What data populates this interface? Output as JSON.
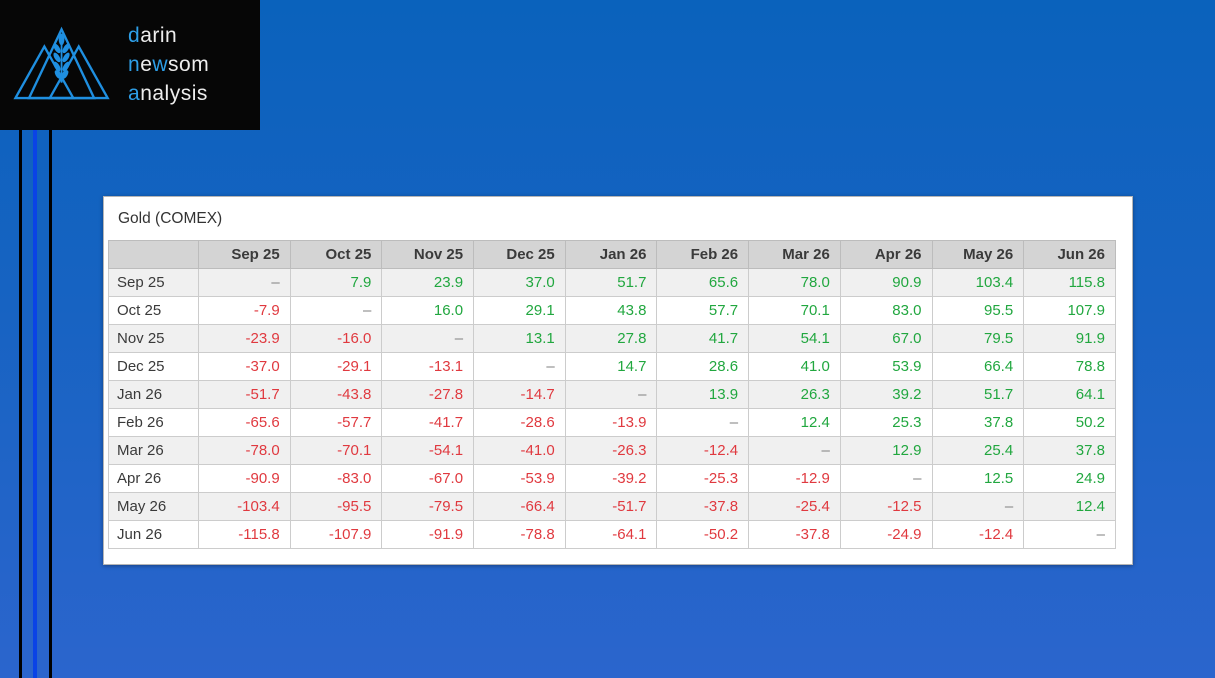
{
  "logo": {
    "l1a": "d",
    "l1b": "arin",
    "l2a": "n",
    "l2b": "e",
    "l2c": "w",
    "l2d": "som",
    "l3a": "a",
    "l3b": "nalysis",
    "accent_color": "#2e9fe8",
    "icon": "mountains-wheat-icon"
  },
  "colors": {
    "positive": "#21a73f",
    "negative": "#e0393f",
    "dash": "#7f7f7f",
    "header_bg": "#d4d4d4",
    "stripe_blue": "#0a43e6",
    "background_top": "#0a62bc",
    "background_bottom": "#2b65cd"
  },
  "main": {
    "panel": {
      "title": "Gold (COMEX)"
    },
    "table": {
      "columns": [
        "Sep 25",
        "Oct 25",
        "Nov 25",
        "Dec 25",
        "Jan 26",
        "Feb 26",
        "Mar 26",
        "Apr 26",
        "May 26",
        "Jun 26"
      ],
      "rows": [
        {
          "label": "Sep 25",
          "values": [
            "–",
            "7.9",
            "23.9",
            "37.0",
            "51.7",
            "65.6",
            "78.0",
            "90.9",
            "103.4",
            "115.8"
          ]
        },
        {
          "label": "Oct 25",
          "values": [
            "-7.9",
            "–",
            "16.0",
            "29.1",
            "43.8",
            "57.7",
            "70.1",
            "83.0",
            "95.5",
            "107.9"
          ]
        },
        {
          "label": "Nov 25",
          "values": [
            "-23.9",
            "-16.0",
            "–",
            "13.1",
            "27.8",
            "41.7",
            "54.1",
            "67.0",
            "79.5",
            "91.9"
          ]
        },
        {
          "label": "Dec 25",
          "values": [
            "-37.0",
            "-29.1",
            "-13.1",
            "–",
            "14.7",
            "28.6",
            "41.0",
            "53.9",
            "66.4",
            "78.8"
          ]
        },
        {
          "label": "Jan 26",
          "values": [
            "-51.7",
            "-43.8",
            "-27.8",
            "-14.7",
            "–",
            "13.9",
            "26.3",
            "39.2",
            "51.7",
            "64.1"
          ]
        },
        {
          "label": "Feb 26",
          "values": [
            "-65.6",
            "-57.7",
            "-41.7",
            "-28.6",
            "-13.9",
            "–",
            "12.4",
            "25.3",
            "37.8",
            "50.2"
          ]
        },
        {
          "label": "Mar 26",
          "values": [
            "-78.0",
            "-70.1",
            "-54.1",
            "-41.0",
            "-26.3",
            "-12.4",
            "–",
            "12.9",
            "25.4",
            "37.8"
          ]
        },
        {
          "label": "Apr 26",
          "values": [
            "-90.9",
            "-83.0",
            "-67.0",
            "-53.9",
            "-39.2",
            "-25.3",
            "-12.9",
            "–",
            "12.5",
            "24.9"
          ]
        },
        {
          "label": "May 26",
          "values": [
            "-103.4",
            "-95.5",
            "-79.5",
            "-66.4",
            "-51.7",
            "-37.8",
            "-25.4",
            "-12.5",
            "–",
            "12.4"
          ]
        },
        {
          "label": "Jun 26",
          "values": [
            "-115.8",
            "-107.9",
            "-91.9",
            "-78.8",
            "-64.1",
            "-50.2",
            "-37.8",
            "-24.9",
            "-12.4",
            "–"
          ]
        }
      ]
    }
  }
}
